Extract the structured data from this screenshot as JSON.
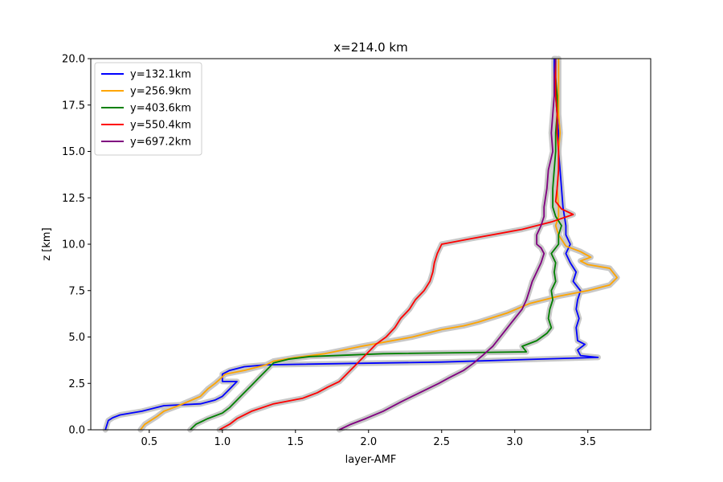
{
  "chart_data": {
    "type": "line",
    "title": "x=214.0 km",
    "xlabel": "layer-AMF",
    "ylabel": "z [km]",
    "xlim": [
      0.1,
      3.93
    ],
    "ylim": [
      0,
      20
    ],
    "xticks": [
      "0.5",
      "1.0",
      "1.5",
      "2.0",
      "2.5",
      "3.0",
      "3.5"
    ],
    "yticks": [
      "0.0",
      "2.5",
      "5.0",
      "7.5",
      "10.0",
      "12.5",
      "15.0",
      "17.5",
      "20.0"
    ],
    "grid": false,
    "legend_position": "upper-left",
    "uncertainty_band_color": "#c8c8c8",
    "series": [
      {
        "name": "y=132.1km",
        "color": "#0000ff",
        "points": [
          [
            0.2,
            0
          ],
          [
            0.22,
            0.5
          ],
          [
            0.25,
            0.65
          ],
          [
            0.3,
            0.8
          ],
          [
            0.45,
            1.0
          ],
          [
            0.55,
            1.2
          ],
          [
            0.6,
            1.3
          ],
          [
            0.85,
            1.4
          ],
          [
            0.95,
            1.6
          ],
          [
            1.0,
            1.8
          ],
          [
            1.05,
            2.2
          ],
          [
            1.1,
            2.6
          ],
          [
            1.0,
            2.6
          ],
          [
            1.0,
            3.0
          ],
          [
            1.05,
            3.2
          ],
          [
            1.15,
            3.4
          ],
          [
            1.3,
            3.5
          ],
          [
            2.5,
            3.65
          ],
          [
            3.57,
            3.9
          ],
          [
            3.45,
            4.0
          ],
          [
            3.43,
            4.3
          ],
          [
            3.48,
            4.6
          ],
          [
            3.43,
            4.8
          ],
          [
            3.42,
            5.5
          ],
          [
            3.44,
            6.0
          ],
          [
            3.42,
            6.5
          ],
          [
            3.43,
            7.0
          ],
          [
            3.45,
            7.5
          ],
          [
            3.4,
            8.0
          ],
          [
            3.42,
            8.5
          ],
          [
            3.38,
            9.0
          ],
          [
            3.35,
            9.5
          ],
          [
            3.38,
            10.0
          ],
          [
            3.35,
            10.5
          ],
          [
            3.35,
            11.0
          ],
          [
            3.33,
            12.0
          ],
          [
            3.32,
            13.0
          ],
          [
            3.31,
            14.0
          ],
          [
            3.3,
            15.0
          ],
          [
            3.3,
            16.0
          ],
          [
            3.29,
            17.0
          ],
          [
            3.28,
            18.0
          ],
          [
            3.27,
            19.0
          ],
          [
            3.27,
            20.0
          ]
        ]
      },
      {
        "name": "y=256.9km",
        "color": "#ffa500",
        "points": [
          [
            0.44,
            0
          ],
          [
            0.47,
            0.3
          ],
          [
            0.55,
            0.7
          ],
          [
            0.6,
            1.0
          ],
          [
            0.7,
            1.3
          ],
          [
            0.85,
            1.8
          ],
          [
            0.9,
            2.2
          ],
          [
            0.95,
            2.5
          ],
          [
            0.98,
            2.7
          ],
          [
            1.02,
            3.0
          ],
          [
            1.15,
            3.2
          ],
          [
            1.3,
            3.5
          ],
          [
            1.35,
            3.7
          ],
          [
            1.5,
            3.9
          ],
          [
            1.7,
            4.1
          ],
          [
            1.95,
            4.5
          ],
          [
            2.3,
            5.0
          ],
          [
            2.5,
            5.4
          ],
          [
            2.65,
            5.6
          ],
          [
            2.75,
            5.8
          ],
          [
            2.95,
            6.3
          ],
          [
            3.1,
            6.8
          ],
          [
            3.3,
            7.2
          ],
          [
            3.5,
            7.5
          ],
          [
            3.65,
            7.8
          ],
          [
            3.7,
            8.2
          ],
          [
            3.65,
            8.7
          ],
          [
            3.5,
            8.9
          ],
          [
            3.45,
            9.1
          ],
          [
            3.52,
            9.3
          ],
          [
            3.45,
            9.6
          ],
          [
            3.35,
            9.9
          ],
          [
            3.3,
            10.5
          ],
          [
            3.28,
            11.0
          ],
          [
            3.3,
            11.5
          ],
          [
            3.3,
            12.0
          ],
          [
            3.29,
            13.0
          ],
          [
            3.3,
            14.0
          ],
          [
            3.3,
            15.0
          ],
          [
            3.31,
            16.0
          ],
          [
            3.3,
            17.0
          ],
          [
            3.3,
            18.0
          ],
          [
            3.3,
            19.0
          ],
          [
            3.3,
            20.0
          ]
        ]
      },
      {
        "name": "y=403.6km",
        "color": "#008000",
        "points": [
          [
            0.78,
            0
          ],
          [
            0.82,
            0.3
          ],
          [
            0.9,
            0.6
          ],
          [
            1.0,
            0.9
          ],
          [
            1.05,
            1.2
          ],
          [
            1.1,
            1.6
          ],
          [
            1.15,
            2.0
          ],
          [
            1.2,
            2.4
          ],
          [
            1.25,
            2.8
          ],
          [
            1.3,
            3.2
          ],
          [
            1.35,
            3.6
          ],
          [
            1.45,
            3.8
          ],
          [
            1.6,
            3.95
          ],
          [
            2.1,
            4.1
          ],
          [
            3.08,
            4.2
          ],
          [
            3.05,
            4.5
          ],
          [
            3.15,
            4.8
          ],
          [
            3.22,
            5.2
          ],
          [
            3.25,
            5.5
          ],
          [
            3.23,
            6.0
          ],
          [
            3.24,
            6.5
          ],
          [
            3.26,
            7.0
          ],
          [
            3.25,
            7.5
          ],
          [
            3.28,
            8.0
          ],
          [
            3.27,
            8.5
          ],
          [
            3.28,
            9.0
          ],
          [
            3.25,
            9.5
          ],
          [
            3.3,
            10.0
          ],
          [
            3.3,
            10.5
          ],
          [
            3.32,
            11.0
          ],
          [
            3.28,
            11.5
          ],
          [
            3.26,
            12.0
          ],
          [
            3.26,
            13.0
          ],
          [
            3.27,
            14.0
          ],
          [
            3.28,
            15.0
          ],
          [
            3.28,
            16.0
          ],
          [
            3.29,
            17.0
          ],
          [
            3.29,
            18.0
          ],
          [
            3.28,
            19.0
          ],
          [
            3.28,
            20.0
          ]
        ]
      },
      {
        "name": "y=550.4km",
        "color": "#ff0000",
        "points": [
          [
            0.98,
            0
          ],
          [
            1.05,
            0.3
          ],
          [
            1.1,
            0.6
          ],
          [
            1.2,
            1.0
          ],
          [
            1.35,
            1.4
          ],
          [
            1.55,
            1.7
          ],
          [
            1.65,
            2.0
          ],
          [
            1.72,
            2.3
          ],
          [
            1.8,
            2.6
          ],
          [
            1.85,
            3.0
          ],
          [
            1.9,
            3.4
          ],
          [
            1.95,
            3.8
          ],
          [
            2.0,
            4.2
          ],
          [
            2.05,
            4.6
          ],
          [
            2.12,
            5.0
          ],
          [
            2.18,
            5.5
          ],
          [
            2.22,
            6.0
          ],
          [
            2.28,
            6.5
          ],
          [
            2.32,
            7.0
          ],
          [
            2.38,
            7.5
          ],
          [
            2.42,
            8.0
          ],
          [
            2.44,
            8.5
          ],
          [
            2.45,
            9.0
          ],
          [
            2.47,
            9.5
          ],
          [
            2.5,
            10.0
          ],
          [
            2.7,
            10.3
          ],
          [
            3.05,
            10.8
          ],
          [
            3.15,
            11.0
          ],
          [
            3.25,
            11.2
          ],
          [
            3.4,
            11.6
          ],
          [
            3.32,
            11.9
          ],
          [
            3.28,
            12.3
          ],
          [
            3.29,
            13.0
          ],
          [
            3.3,
            14.0
          ],
          [
            3.3,
            15.0
          ],
          [
            3.29,
            16.0
          ],
          [
            3.29,
            17.0
          ],
          [
            3.28,
            18.0
          ],
          [
            3.28,
            19.0
          ],
          [
            3.28,
            20.0
          ]
        ]
      },
      {
        "name": "y=697.2km",
        "color": "#800080",
        "points": [
          [
            1.8,
            0
          ],
          [
            1.88,
            0.3
          ],
          [
            1.98,
            0.6
          ],
          [
            2.1,
            1.0
          ],
          [
            2.22,
            1.5
          ],
          [
            2.35,
            2.0
          ],
          [
            2.48,
            2.5
          ],
          [
            2.55,
            2.8
          ],
          [
            2.65,
            3.2
          ],
          [
            2.72,
            3.6
          ],
          [
            2.78,
            4.0
          ],
          [
            2.85,
            4.5
          ],
          [
            2.9,
            5.0
          ],
          [
            2.95,
            5.5
          ],
          [
            3.0,
            6.0
          ],
          [
            3.05,
            6.5
          ],
          [
            3.08,
            7.0
          ],
          [
            3.1,
            7.5
          ],
          [
            3.12,
            8.0
          ],
          [
            3.15,
            8.5
          ],
          [
            3.18,
            9.0
          ],
          [
            3.2,
            9.5
          ],
          [
            3.18,
            9.8
          ],
          [
            3.15,
            10.0
          ],
          [
            3.15,
            10.5
          ],
          [
            3.18,
            11.0
          ],
          [
            3.2,
            11.5
          ],
          [
            3.2,
            12.0
          ],
          [
            3.22,
            13.0
          ],
          [
            3.23,
            14.0
          ],
          [
            3.26,
            15.0
          ],
          [
            3.25,
            16.0
          ],
          [
            3.26,
            17.0
          ],
          [
            3.27,
            18.0
          ],
          [
            3.27,
            19.0
          ],
          [
            3.28,
            20.0
          ]
        ]
      }
    ]
  }
}
